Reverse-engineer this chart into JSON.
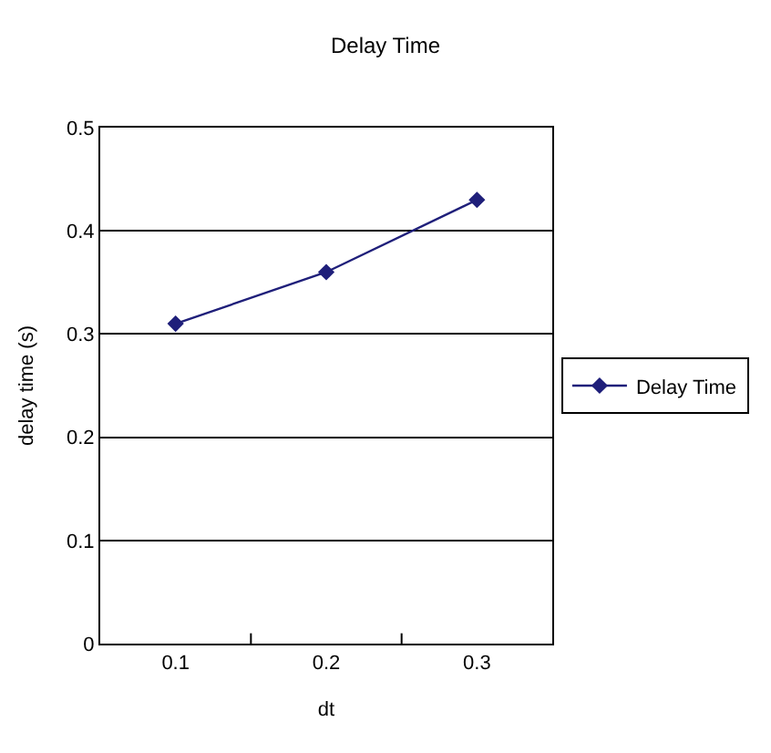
{
  "chart_data": {
    "type": "line",
    "title": "Delay Time",
    "xlabel": "dt",
    "ylabel": "delay time (s)",
    "categories": [
      "0.1",
      "0.2",
      "0.3"
    ],
    "series": [
      {
        "name": "Delay Time",
        "color": "#1f1f7a",
        "values": [
          0.31,
          0.36,
          0.43
        ]
      }
    ],
    "ylim": [
      0,
      0.5
    ],
    "yticks": [
      0,
      0.1,
      0.2,
      0.3,
      0.4,
      0.5
    ],
    "grid": "y",
    "legend": "right",
    "marker": "diamond",
    "line_style": "solid"
  }
}
